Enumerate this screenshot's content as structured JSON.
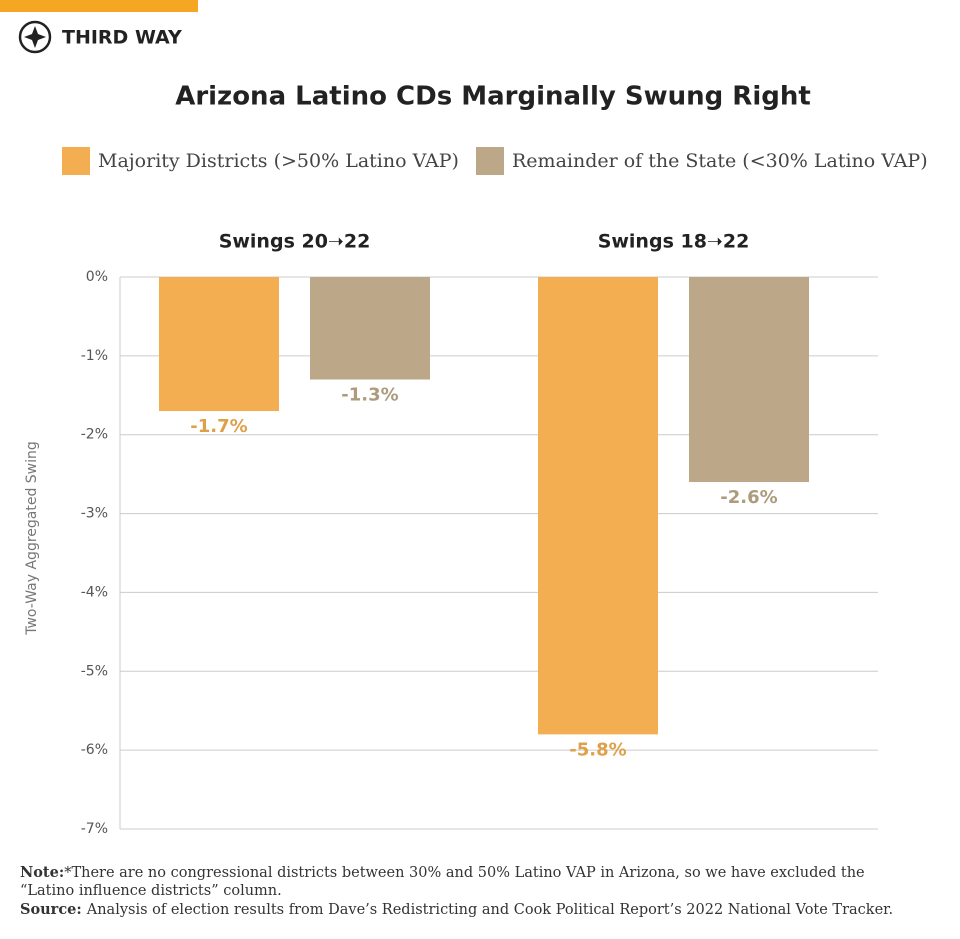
{
  "brand": "THIRD WAY",
  "chart_data": {
    "type": "bar",
    "title": "Arizona Latino CDs Marginally Swung Right",
    "y_label": "Two-Way Aggregated Swing",
    "categories": [
      "Swings 20➝22",
      "Swings 18➝22"
    ],
    "series": [
      {
        "name": "Majority Districts (>50% Latino VAP)",
        "color": "#f2ae50",
        "values": [
          -1.7,
          -5.8
        ],
        "value_labels": [
          "-1.7%",
          "-5.8%"
        ]
      },
      {
        "name": "Remainder of the State (<30% Latino VAP)",
        "color": "#bca888",
        "values": [
          -1.3,
          -2.6
        ],
        "value_labels": [
          "-1.3%",
          "-2.6%"
        ]
      }
    ],
    "ylim": [
      -7,
      0
    ],
    "yticks": [
      {
        "value": 0,
        "label": "0%"
      },
      {
        "value": -1,
        "label": "-1%"
      },
      {
        "value": -2,
        "label": "-2%"
      },
      {
        "value": -3,
        "label": "-3%"
      },
      {
        "value": -4,
        "label": "-4%"
      },
      {
        "value": -5,
        "label": "-5%"
      },
      {
        "value": -6,
        "label": "-6%"
      },
      {
        "value": -7,
        "label": "-7%"
      }
    ],
    "grid": true
  },
  "note": {
    "label": "Note:",
    "text": "*There are no congressional districts between 30% and 50% Latino VAP in Arizona, so we have excluded the",
    "text2": "“Latino influence districts” column."
  },
  "source": {
    "label": "Source:",
    "text": "Analysis of election results from Dave’s Redistricting and Cook Political Report’s 2022 National Vote Tracker."
  }
}
